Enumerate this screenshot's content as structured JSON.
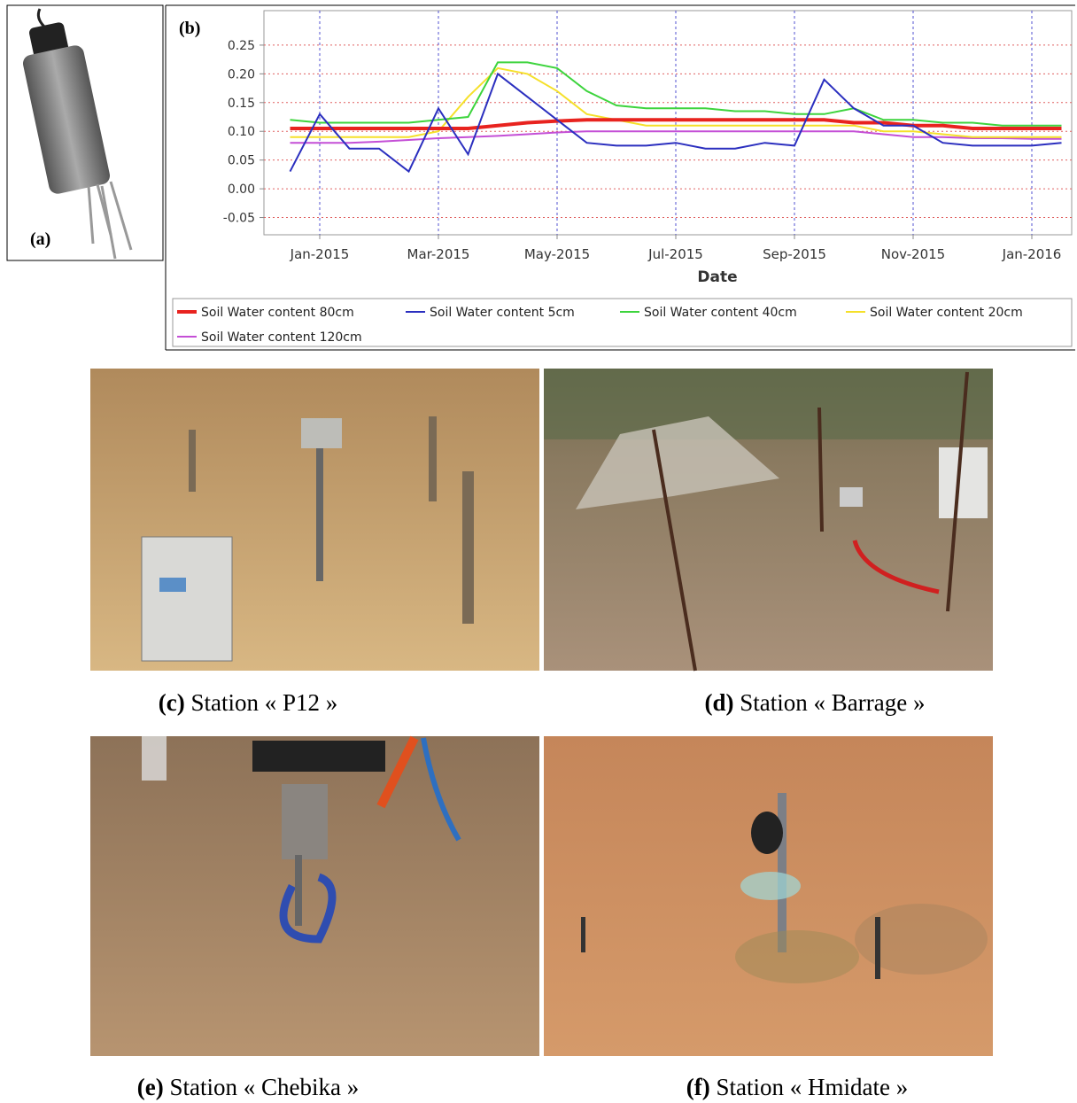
{
  "panel_labels": [
    "(a)",
    "(b)"
  ],
  "chart_data": {
    "type": "line",
    "x_label": "Date",
    "x": [
      null,
      "Jan-2015",
      null,
      null,
      null,
      "Mar-2015",
      null,
      null,
      null,
      "May-2015",
      null,
      null,
      null,
      "Jul-2015",
      null,
      null,
      null,
      "Sep-2015",
      null,
      null,
      null,
      "Nov-2015",
      null,
      null,
      null,
      "Jan-2016",
      null
    ],
    "ylim": [
      -0.08,
      0.31
    ],
    "yticks": [
      -0.05,
      {
        "value": 0,
        "label": "0.00"
      },
      0.05,
      {
        "value": 0.1,
        "label": "0.10"
      },
      0.15,
      {
        "value": 0.2,
        "label": "0.20"
      },
      0.25
    ],
    "grid": true,
    "legend": "bottom",
    "series": [
      {
        "name": "Soil Water content 80cm",
        "color": "#e8231f",
        "values": [
          0.105,
          0.105,
          0.105,
          0.105,
          0.105,
          0.105,
          0.105,
          0.11,
          0.115,
          0.118,
          0.12,
          0.12,
          0.12,
          0.12,
          0.12,
          0.12,
          0.12,
          0.12,
          0.12,
          0.115,
          0.115,
          0.11,
          0.11,
          0.105,
          0.105,
          0.105,
          0.105
        ]
      },
      {
        "name": "Soil Water content 5cm",
        "color": "#2b2fbf",
        "values": [
          0.03,
          0.13,
          0.07,
          0.07,
          0.03,
          0.14,
          0.06,
          0.2,
          0.16,
          0.12,
          0.08,
          0.075,
          0.075,
          0.08,
          0.07,
          0.07,
          0.08,
          0.075,
          0.19,
          0.14,
          0.11,
          0.11,
          0.08,
          0.075,
          0.075,
          0.075,
          0.08
        ]
      },
      {
        "name": "Soil Water content 40cm",
        "color": "#3dd43d",
        "values": [
          0.12,
          0.115,
          0.115,
          0.115,
          0.115,
          0.12,
          0.125,
          0.22,
          0.22,
          0.21,
          0.17,
          0.145,
          0.14,
          0.14,
          0.14,
          0.135,
          0.135,
          0.13,
          0.13,
          0.14,
          0.12,
          0.12,
          0.115,
          0.115,
          0.11,
          0.11,
          0.11
        ]
      },
      {
        "name": "Soil Water content 20cm",
        "color": "#f5e02a",
        "values": [
          0.09,
          0.09,
          0.09,
          0.09,
          0.09,
          0.1,
          0.16,
          0.21,
          0.2,
          0.17,
          0.13,
          0.12,
          0.11,
          0.11,
          0.11,
          0.11,
          0.11,
          0.11,
          0.11,
          0.11,
          0.1,
          0.1,
          0.095,
          0.09,
          0.09,
          0.09,
          0.09
        ]
      },
      {
        "name": "Soil Water content 120cm",
        "color": "#c44fd6",
        "values": [
          0.08,
          0.08,
          0.08,
          0.082,
          0.085,
          0.088,
          0.09,
          0.092,
          0.095,
          0.098,
          0.1,
          0.1,
          0.1,
          0.1,
          0.1,
          0.1,
          0.1,
          0.1,
          0.1,
          0.1,
          0.095,
          0.09,
          0.09,
          0.088,
          0.088,
          0.087,
          0.087
        ]
      }
    ]
  },
  "photos": [
    {
      "label": "(c)",
      "caption": "Station « P12 »"
    },
    {
      "label": "(d)",
      "caption": "Station « Barrage »"
    },
    {
      "label": "(e)",
      "caption": "Station « Chebika »"
    },
    {
      "label": "(f)",
      "caption": "Station « Hmidate »"
    }
  ]
}
